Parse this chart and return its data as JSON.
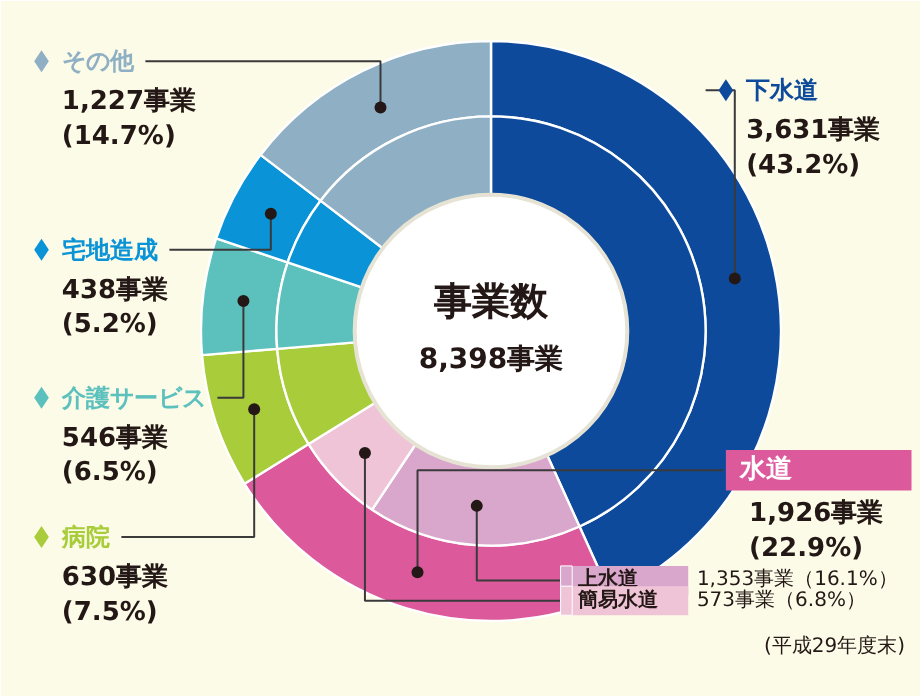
{
  "chart_data": {
    "type": "donut",
    "title": "事業数",
    "subtitle": "8,398事業",
    "categories": [
      "下水道",
      "水道",
      "上水道",
      "簡易水道",
      "病院",
      "介護サービス",
      "宅地造成",
      "その他"
    ],
    "series": [
      {
        "colors": [
          "#0d4a9b",
          "#dc5a9c",
          null,
          null,
          "#a8cc3a",
          "#5cc0bd",
          "#0a93d6",
          "#8fb0c4"
        ],
        "values": [
          3631,
          1926,
          null,
          null,
          630,
          546,
          438,
          1227
        ],
        "value_labels": [
          "3,631事業\n(43.2%)",
          "1,926事業\n(22.9%)",
          null,
          null,
          "630事業\n(7.5%)",
          "546事業\n(6.5%)",
          "438事業\n(5.2%)",
          "1,227事業\n(14.7%)"
        ]
      },
      {
        "colors": [
          "#0d4a9b",
          null,
          "#d9a6cc",
          "#efc4d7",
          "#a8cc3a",
          "#5cc0bd",
          "#0a93d6",
          "#8fb0c4"
        ],
        "values": [
          3631,
          null,
          1353,
          573,
          630,
          546,
          438,
          1227
        ],
        "value_labels": [
          null,
          null,
          "1,353事業（16.1%）",
          "573事業（6.8%）",
          null,
          null,
          null,
          null
        ]
      }
    ],
    "legend": "left",
    "annotations": [
      "(平成29年度末)"
    ]
  }
}
